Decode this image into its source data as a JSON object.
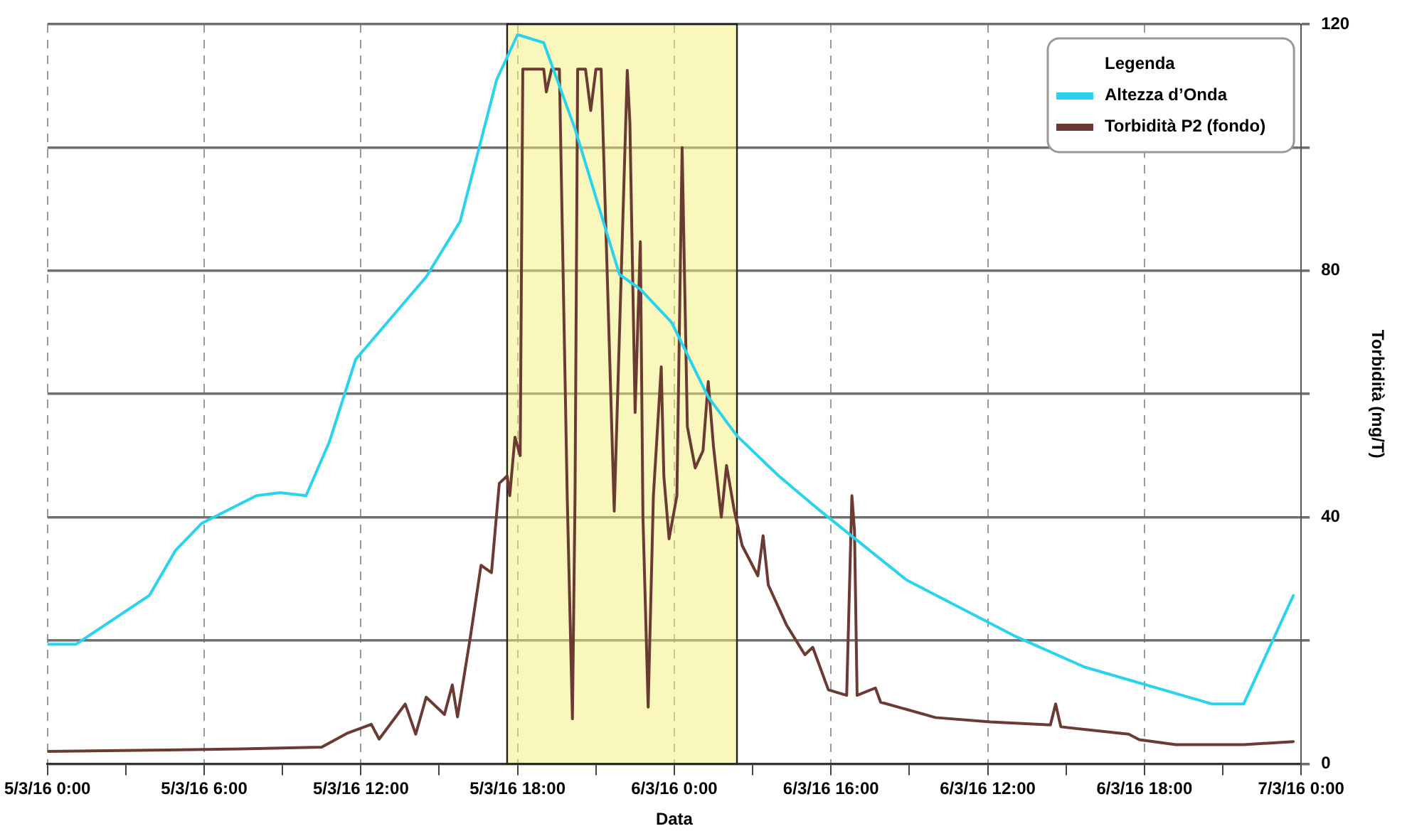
{
  "chart_data": {
    "type": "line",
    "xlabel": "Data",
    "ylabel": "Torbidità (mg/T)",
    "legend_title": "Legenda",
    "legend": "top right",
    "grid": true,
    "marker": "none",
    "line_style": "solid",
    "xlim": [
      "--03-05T00:00",
      "--03-07T00:00"
    ],
    "xticks": [
      {
        "value": "--03-05T00:00",
        "label": "5/3/16 0:00"
      },
      {
        "value": "--03-05T03:00",
        "label": null
      },
      {
        "value": "--03-05T06:00",
        "label": "5/3/16 6:00"
      },
      {
        "value": "--03-05T09:00",
        "label": null
      },
      {
        "value": "--03-05T12:00",
        "label": "5/3/16 12:00"
      },
      {
        "value": "--03-05T15:00",
        "label": null
      },
      {
        "value": "--03-05T18:00",
        "label": "5/3/16 18:00"
      },
      {
        "value": "--03-05T21:00",
        "label": null
      },
      {
        "value": "--03-06T00:00",
        "label": "6/3/16 0:00"
      },
      {
        "value": "--03-06T03:00",
        "label": null
      },
      {
        "value": "--03-06T06:00",
        "label": "6/3/16 16:00"
      },
      {
        "value": "--03-06T09:00",
        "label": null
      },
      {
        "value": "--03-06T12:00",
        "label": "6/3/16 12:00"
      },
      {
        "value": "--03-06T15:00",
        "label": null
      },
      {
        "value": "--03-06T18:00",
        "label": "6/3/16 18:00"
      },
      {
        "value": "--03-06T21:00",
        "label": null
      },
      {
        "value": "--03-07T00:00",
        "label": "7/3/16 0:00"
      }
    ],
    "ylim": [
      0,
      120
    ],
    "yticks": [
      0,
      {
        "value": 20,
        "label": null
      },
      40,
      {
        "value": 60,
        "label": null
      },
      80,
      {
        "value": 100,
        "label": null
      },
      120
    ],
    "bands": [
      {
        "axis": "x",
        "from": "--03-05T17:36",
        "to": "--03-06T02:24",
        "color": "#f5f07a"
      }
    ],
    "series": [
      {
        "name": "Altezza d’Onda",
        "color": "#29d3ee",
        "x": [
          "--03-05T00:00",
          "--03-05T01:06",
          "--03-05T03:54",
          "--03-05T04:54",
          "--03-05T05:54",
          "--03-05T08:00",
          "--03-05T08:54",
          "--03-05T09:54",
          "--03-05T10:48",
          "--03-05T11:48",
          "--03-05T14:30",
          "--03-05T15:48",
          "--03-05T17:12",
          "--03-05T18:00",
          "--03-05T19:00",
          "--03-05T20:12",
          "--03-05T21:54",
          "--03-05T22:42",
          "--03-05T23:54",
          "--03-06T01:18",
          "--03-06T02:24",
          "--03-06T04:00",
          "--03-06T05:36",
          "--03-06T08:54",
          "--03-06T13:00",
          "--03-06T15:42",
          "--03-06T20:36",
          "--03-06T21:48",
          "--03-06T23:42"
        ],
        "values": [
          19.4,
          19.4,
          27.3,
          34.6,
          39,
          43.5,
          44,
          43.5,
          52.3,
          65.6,
          79,
          88,
          111,
          118.3,
          117,
          103,
          79.4,
          77,
          71.6,
          59.5,
          53.2,
          46.7,
          41,
          29.8,
          20.8,
          15.7,
          9.7,
          9.7,
          27.3
        ]
      },
      {
        "name": "Torbidità P2 (fondo)",
        "color": "#6b3a32",
        "x": [
          "--03-05T00:00",
          "--03-05T07:24",
          "--03-05T10:30",
          "--03-05T11:30",
          "--03-05T12:24",
          "--03-05T12:42",
          "--03-05T13:42",
          "--03-05T14:06",
          "--03-05T14:30",
          "--03-05T15:12",
          "--03-05T15:30",
          "--03-05T15:42",
          "--03-05T16:12",
          "--03-05T16:36",
          "--03-05T17:00",
          "--03-05T17:18",
          "--03-05T17:36",
          "--03-05T17:42",
          "--03-05T17:54",
          "--03-05T18:06",
          "--03-05T18:12",
          "--03-05T19:00",
          "--03-05T19:06",
          "--03-05T19:18",
          "--03-05T19:36",
          "--03-05T19:54",
          "--03-05T20:06",
          "--03-05T20:12",
          "--03-05T20:18",
          "--03-05T20:36",
          "--03-05T20:48",
          "--03-05T21:00",
          "--03-05T21:12",
          "--03-05T21:42",
          "--03-05T22:12",
          "--03-05T22:18",
          "--03-05T22:30",
          "--03-05T22:42",
          "--03-05T22:48",
          "--03-05T23:00",
          "--03-05T23:12",
          "--03-05T23:30",
          "--03-05T23:36",
          "--03-05T23:48",
          "--03-06T00:06",
          "--03-06T00:18",
          "--03-06T00:30",
          "--03-06T00:48",
          "--03-06T01:06",
          "--03-06T01:18",
          "--03-06T01:30",
          "--03-06T01:48",
          "--03-06T02:00",
          "--03-06T02:18",
          "--03-06T02:36",
          "--03-06T03:12",
          "--03-06T03:24",
          "--03-06T03:36",
          "--03-06T04:18",
          "--03-06T05:00",
          "--03-06T05:18",
          "--03-06T05:54",
          "--03-06T06:36",
          "--03-06T06:48",
          "--03-06T06:54",
          "--03-06T07:00",
          "--03-06T07:42",
          "--03-06T07:54",
          "--03-06T10:00",
          "--03-06T12:06",
          "--03-06T14:24",
          "--03-06T14:36",
          "--03-06T14:48",
          "--03-06T17:24",
          "--03-06T17:48",
          "--03-06T19:12",
          "--03-06T21:48",
          "--03-06T23:42"
        ],
        "values": [
          2,
          2.4,
          2.7,
          5,
          6.4,
          4,
          9.7,
          4.8,
          10.8,
          8,
          12.8,
          7.6,
          20.8,
          32.2,
          31,
          45.5,
          46.7,
          43.5,
          53,
          50,
          112.7,
          112.7,
          109,
          112.7,
          112.7,
          43.5,
          7.3,
          43.5,
          112.7,
          112.7,
          106,
          112.7,
          112.7,
          41,
          112.5,
          104,
          57,
          84.7,
          40,
          9.2,
          43.5,
          64.4,
          46.7,
          36.5,
          43.5,
          100,
          54.7,
          48,
          50.8,
          62,
          51.5,
          40,
          48.4,
          41,
          35.4,
          30.5,
          37,
          29,
          22.5,
          17.7,
          18.9,
          12,
          11.1,
          43.5,
          37.8,
          11.1,
          12.3,
          10,
          7.5,
          6.8,
          6.3,
          9.7,
          6,
          4.8,
          3.9,
          3.1,
          3.1,
          3.6
        ]
      }
    ]
  }
}
